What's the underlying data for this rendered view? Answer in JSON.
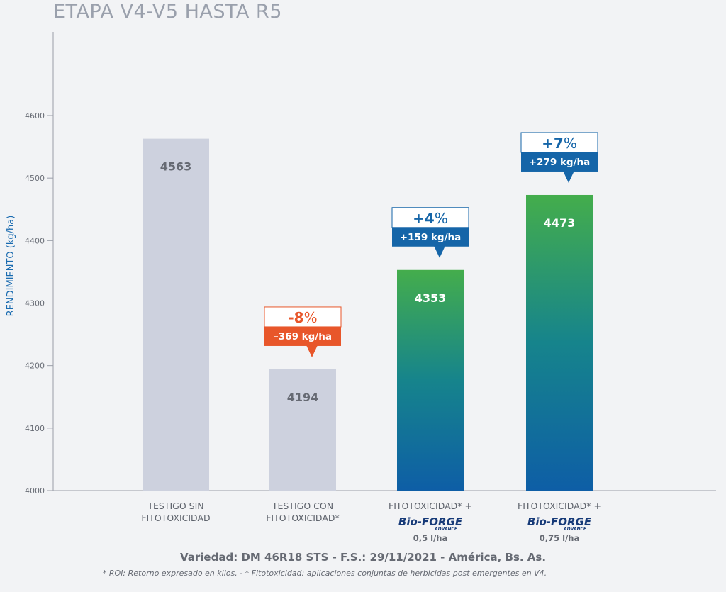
{
  "chart_data": {
    "type": "bar",
    "title": "ETAPA V4-V5 HASTA R5",
    "ylabel": "RENDIMIENTO (kg/ha)",
    "ylim": [
      4000,
      4700
    ],
    "yticks": [
      4000,
      4100,
      4200,
      4300,
      4400,
      4500,
      4600
    ],
    "grid": false,
    "categories": [
      {
        "line1": "TESTIGO SIN",
        "line2": "FITOTOXICIDAD",
        "brand": "",
        "brand_sub": "",
        "dose": ""
      },
      {
        "line1": "TESTIGO CON",
        "line2": "FITOTOXICIDAD*",
        "brand": "",
        "brand_sub": "",
        "dose": ""
      },
      {
        "line1": "FITOTOXICIDAD* +",
        "line2": "",
        "brand": "Bio-FORGE",
        "brand_sub": "ADVANCE",
        "dose": "0,5 l/ha"
      },
      {
        "line1": "FITOTOXICIDAD* +",
        "line2": "",
        "brand": "Bio-FORGE",
        "brand_sub": "ADVANCE",
        "dose": "0,75 l/ha"
      }
    ],
    "values": [
      4563,
      4194,
      4353,
      4473
    ],
    "value_labels": [
      "4563",
      "4194",
      "4353",
      "4473"
    ],
    "bar_styles": [
      "gray",
      "gray",
      "gradient",
      "gradient"
    ],
    "annotations": [
      null,
      {
        "pct": "-8",
        "pct_sign": "%",
        "kg": "–369 kg/ha",
        "color": "#e8562a"
      },
      {
        "pct": "+4",
        "pct_sign": "%",
        "kg": "+159 kg/ha",
        "color": "#1565a8"
      },
      {
        "pct": "+7",
        "pct_sign": "%",
        "kg": "+279 kg/ha",
        "color": "#1565a8"
      }
    ],
    "colors": {
      "gray_bar": "#cdd1de",
      "gray_value": "#666a73",
      "gradient_top": "#44ad4c",
      "gradient_mid": "#16848c",
      "gradient_bottom": "#0e5ea6",
      "axis": "#9a9ea8"
    }
  },
  "footer": {
    "variedad": "Variedad: DM 46R18 STS - F.S.: 29/11/2021 - América, Bs. As.",
    "note": "* ROI: Retorno expresado en kilos. - * Fitotoxicidad: aplicaciones conjuntas de herbicidas post emergentes en V4."
  }
}
